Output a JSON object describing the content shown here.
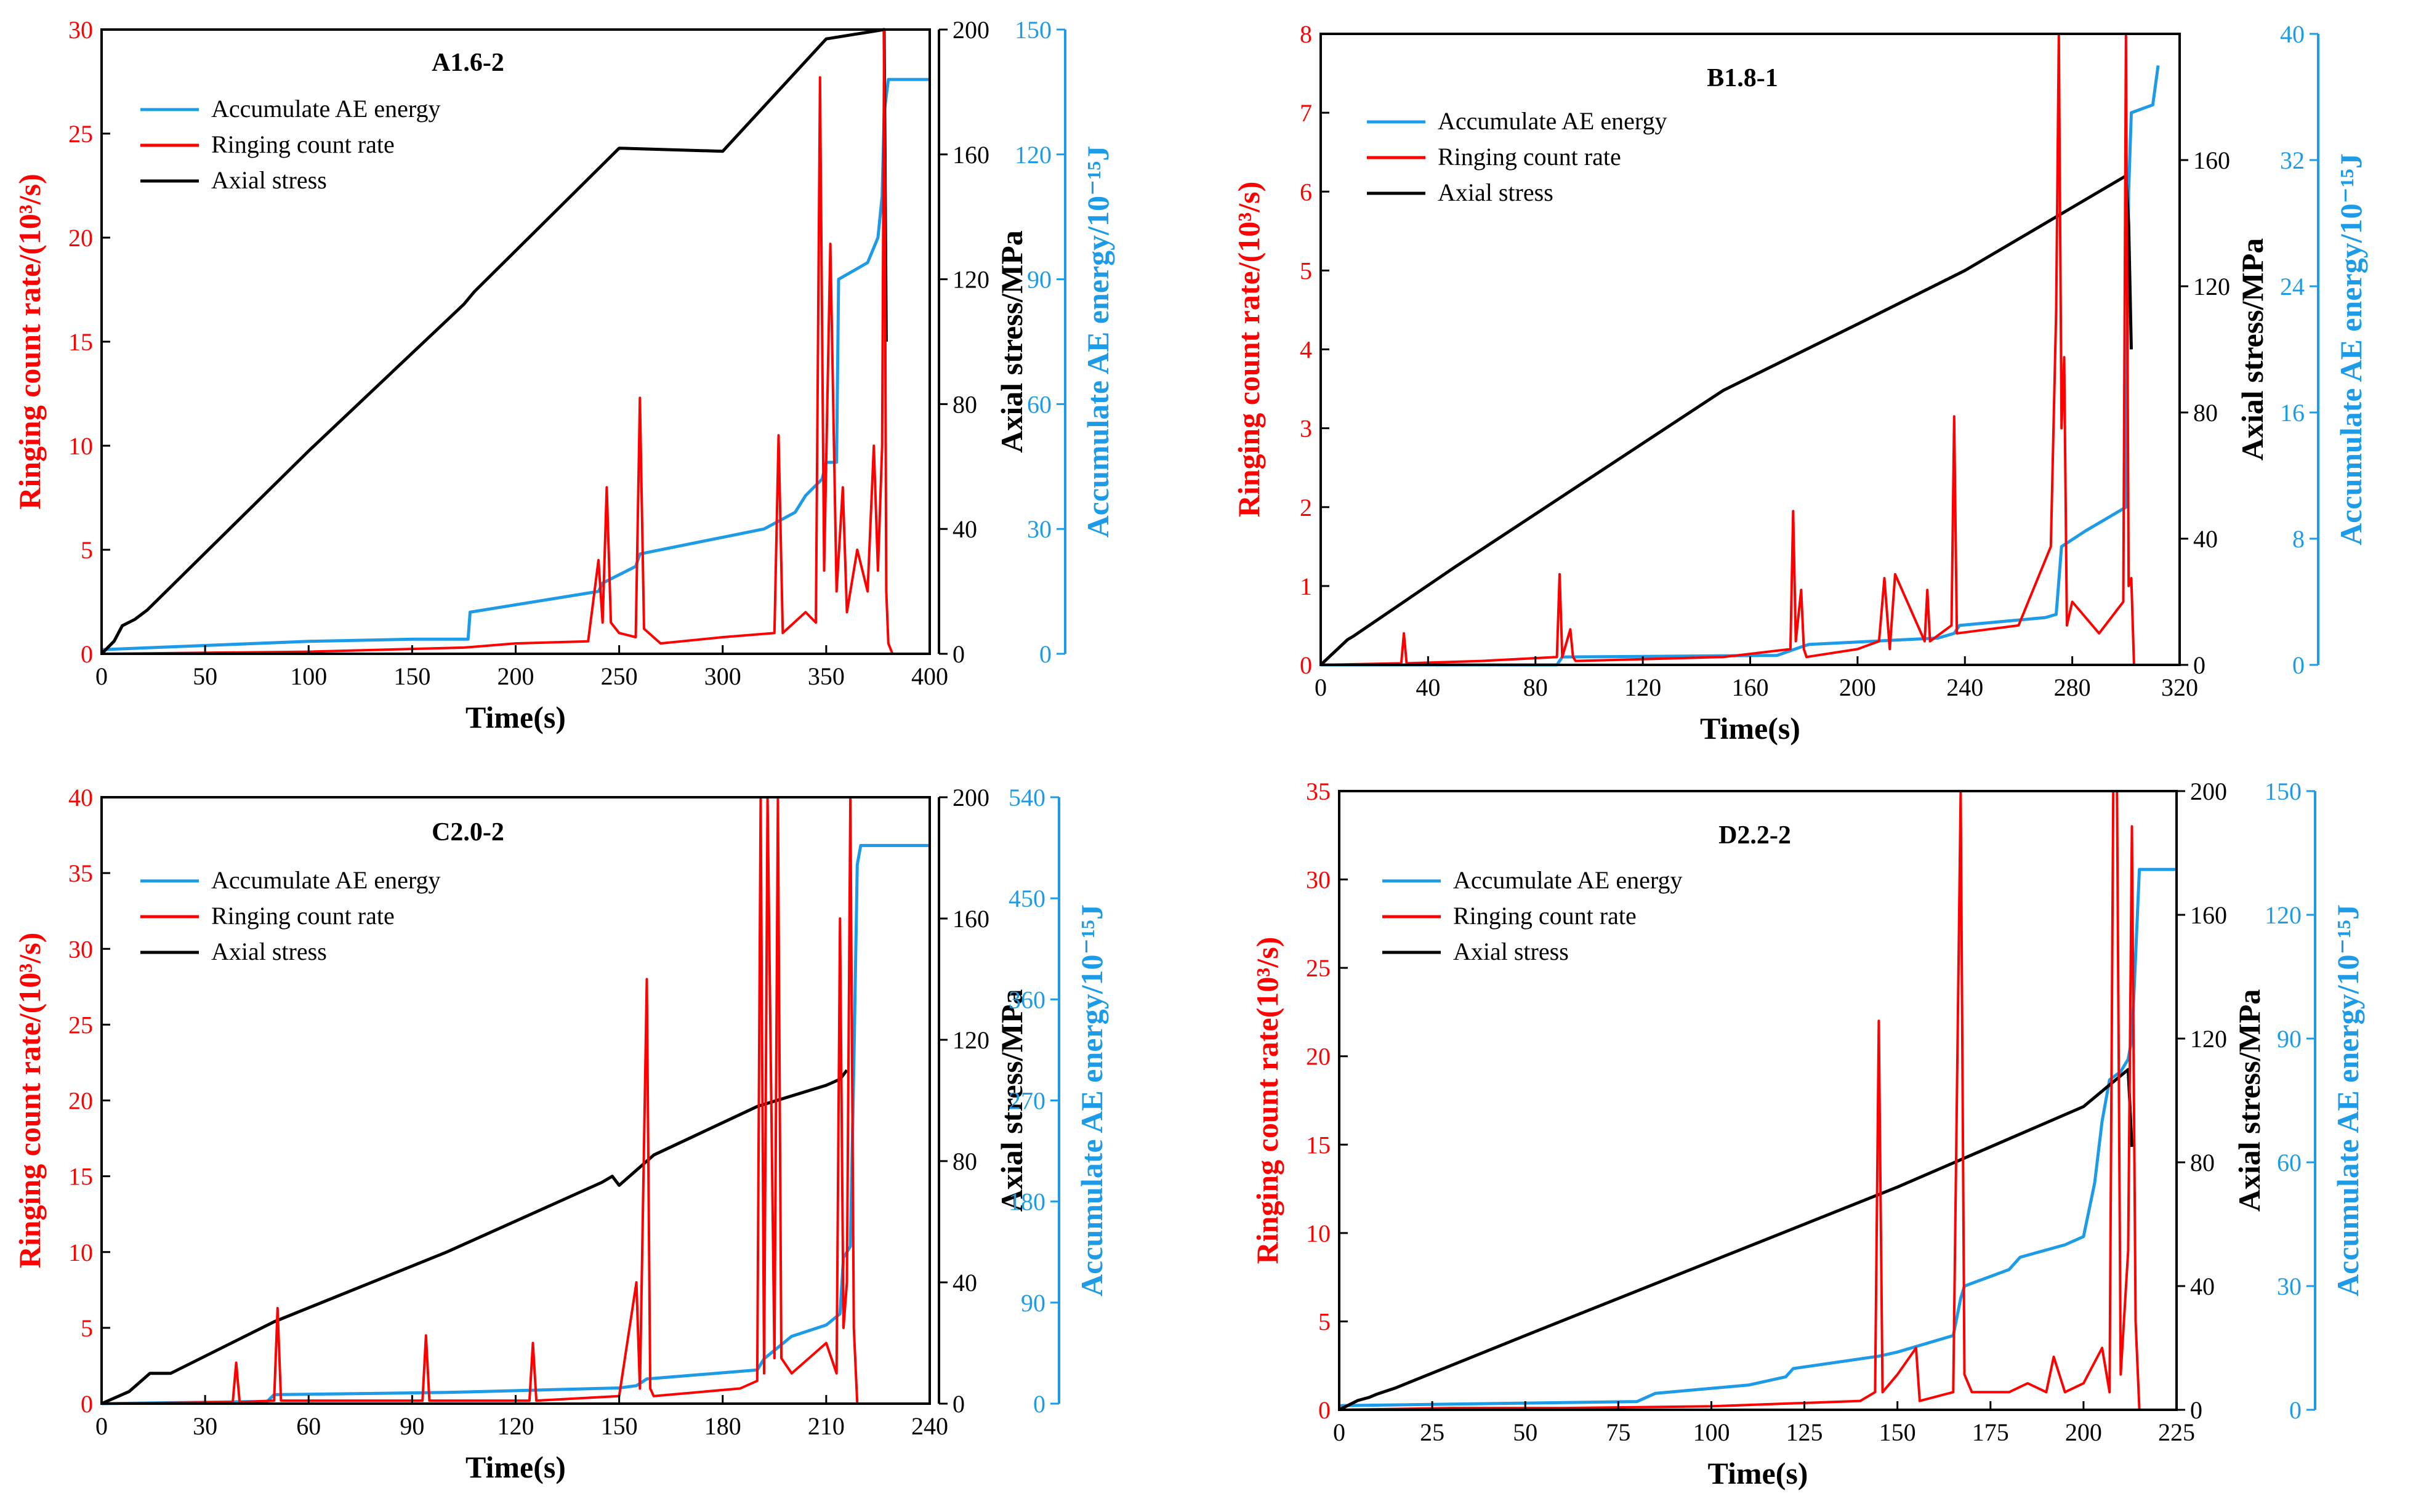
{
  "colors": {
    "ringing": "#ff0000",
    "energy": "#1e9be6",
    "stress": "#000000",
    "axis": "#000000"
  },
  "labels": {
    "xlabel": "Time(s)",
    "ylabel_left": "Ringing count rate/(10³/s)",
    "ylabel_left_alt": "Ringing count rate(10³/s)",
    "ylabel_stress": "Axial stress/MPa",
    "ylabel_energy": "Accumulate AE energy/10⁻¹⁵J"
  },
  "legend": {
    "energy": "Accumulate AE energy",
    "ringing": "Ringing count rate",
    "stress": "Axial stress"
  },
  "chart_data": [
    {
      "type": "line",
      "title": "A1.6-2",
      "xlim": [
        0,
        400
      ],
      "xticks": [
        0,
        50,
        100,
        150,
        200,
        250,
        300,
        350,
        400
      ],
      "ylim_left": [
        0,
        30
      ],
      "yticks_left": [
        0,
        5,
        10,
        15,
        20,
        25,
        30
      ],
      "ylim_stress": [
        0,
        200
      ],
      "yticks_stress": [
        0,
        40,
        80,
        120,
        160,
        200
      ],
      "ylim_energy": [
        0,
        150
      ],
      "yticks_energy": [
        0,
        30,
        60,
        90,
        120,
        150
      ],
      "ylabel_left_variant": "slash",
      "series": [
        {
          "name": "Axial stress",
          "axis": "stress",
          "x": [
            0,
            6,
            10,
            16,
            22,
            100,
            175,
            180,
            250,
            300,
            350,
            378,
            379
          ],
          "y": [
            0,
            4,
            9,
            11,
            14,
            65,
            112,
            116,
            162,
            161,
            197,
            210,
            100
          ]
        },
        {
          "name": "Accumulate AE energy",
          "axis": "energy",
          "x": [
            0,
            50,
            100,
            150,
            177,
            178,
            240,
            242,
            258,
            260,
            320,
            335,
            340,
            348,
            350,
            355,
            356,
            370,
            375,
            377,
            378,
            380,
            400
          ],
          "y": [
            1,
            2,
            3,
            3.5,
            3.5,
            10,
            15,
            17,
            21,
            24,
            30,
            34,
            38,
            42,
            46,
            46,
            90,
            94,
            100,
            110,
            130,
            138,
            138
          ]
        },
        {
          "name": "Ringing count rate",
          "axis": "left",
          "x": [
            0,
            50,
            100,
            175,
            200,
            235,
            240,
            242,
            244,
            246,
            250,
            258,
            260,
            262,
            270,
            300,
            325,
            327,
            329,
            340,
            345,
            347,
            349,
            352,
            355,
            358,
            360,
            365,
            370,
            373,
            375,
            377,
            378,
            379,
            380,
            382
          ],
          "y": [
            0,
            0.05,
            0.1,
            0.3,
            0.5,
            0.6,
            4.5,
            1.5,
            8.0,
            1.5,
            1.0,
            0.8,
            12.3,
            1.2,
            0.5,
            0.8,
            1.0,
            10.5,
            1.0,
            2.0,
            1.5,
            27.7,
            4.0,
            19.7,
            3.0,
            8.0,
            2.0,
            5.0,
            3.0,
            10.0,
            4.0,
            10.0,
            30.0,
            3.0,
            0.5,
            0
          ]
        }
      ]
    },
    {
      "type": "line",
      "title": "B1.8-1",
      "xlim": [
        0,
        320
      ],
      "xticks": [
        0,
        40,
        80,
        120,
        160,
        200,
        240,
        280,
        320
      ],
      "ylim_left": [
        0,
        8
      ],
      "yticks_left": [
        0,
        1,
        2,
        3,
        4,
        5,
        6,
        7,
        8
      ],
      "ylim_stress": [
        0,
        200
      ],
      "yticks_stress": [
        0,
        40,
        80,
        120,
        160
      ],
      "ylim_energy": [
        0,
        40
      ],
      "yticks_energy": [
        0,
        8,
        16,
        24,
        32,
        40
      ],
      "ylabel_left_variant": "slash",
      "series": [
        {
          "name": "Axial stress",
          "axis": "stress",
          "x": [
            0,
            10,
            12,
            50,
            100,
            150,
            200,
            240,
            280,
            300,
            301,
            302
          ],
          "y": [
            0,
            8,
            9,
            31,
            59,
            87,
            108,
            125,
            145,
            155,
            140,
            100
          ]
        },
        {
          "name": "Accumulate AE energy",
          "axis": "energy",
          "x": [
            0,
            88,
            90,
            170,
            180,
            182,
            230,
            236,
            238,
            270,
            274,
            276,
            285,
            295,
            300,
            301,
            302,
            310,
            312
          ],
          "y": [
            0,
            0,
            0.5,
            0.6,
            1.2,
            1.3,
            1.7,
            2.0,
            2.5,
            3.0,
            3.2,
            7.5,
            8.5,
            9.5,
            10.0,
            30.0,
            35.0,
            35.5,
            38.0
          ]
        },
        {
          "name": "Ringing count rate",
          "axis": "left",
          "x": [
            0,
            30,
            31,
            32,
            60,
            88,
            89,
            90,
            93,
            94,
            95,
            150,
            175,
            176,
            177,
            179,
            180,
            181,
            200,
            208,
            210,
            212,
            214,
            225,
            226,
            227,
            235,
            236,
            237,
            260,
            272,
            274,
            275,
            276,
            277,
            278,
            280,
            290,
            299,
            300,
            301,
            302,
            303
          ],
          "y": [
            0,
            0.02,
            0.4,
            0.02,
            0.05,
            0.1,
            1.15,
            0.1,
            0.45,
            0.1,
            0.05,
            0.1,
            0.2,
            1.95,
            0.3,
            0.95,
            0.2,
            0.1,
            0.2,
            0.3,
            1.1,
            0.2,
            1.15,
            0.3,
            0.95,
            0.3,
            0.5,
            3.15,
            0.4,
            0.5,
            1.5,
            4.5,
            8.0,
            3.0,
            3.9,
            0.5,
            0.8,
            0.4,
            0.8,
            8.0,
            1.0,
            1.1,
            0
          ]
        }
      ]
    },
    {
      "type": "line",
      "title": "C2.0-2",
      "xlim": [
        0,
        240
      ],
      "xticks": [
        0,
        30,
        60,
        90,
        120,
        150,
        180,
        210,
        240
      ],
      "ylim_left": [
        0,
        40
      ],
      "yticks_left": [
        0,
        5,
        10,
        15,
        20,
        25,
        30,
        35,
        40
      ],
      "ylim_stress": [
        0,
        200
      ],
      "yticks_stress": [
        0,
        40,
        80,
        120,
        160,
        200
      ],
      "ylim_energy": [
        0,
        540
      ],
      "yticks_energy": [
        0,
        90,
        180,
        270,
        360,
        450,
        540
      ],
      "ylabel_left_variant": "slash",
      "series": [
        {
          "name": "Axial stress",
          "axis": "stress",
          "x": [
            0,
            8,
            12,
            14,
            20,
            50,
            100,
            145,
            148,
            150,
            160,
            190,
            210,
            214,
            216
          ],
          "y": [
            0,
            4,
            8,
            10,
            10,
            27,
            50,
            73,
            75,
            72,
            82,
            98,
            105,
            107,
            110
          ]
        },
        {
          "name": "Accumulate AE energy",
          "axis": "energy",
          "x": [
            0,
            48,
            50,
            100,
            150,
            155,
            158,
            190,
            192,
            200,
            210,
            214,
            215,
            217,
            218,
            219,
            220,
            240
          ],
          "y": [
            0,
            2,
            8,
            10,
            14,
            16,
            22,
            30,
            40,
            60,
            70,
            80,
            130,
            140,
            300,
            480,
            497,
            497
          ]
        },
        {
          "name": "Ringing count rate",
          "axis": "left",
          "x": [
            0,
            38,
            39,
            40,
            50,
            51,
            52,
            93,
            94,
            95,
            124,
            125,
            126,
            150,
            155,
            156,
            158,
            159,
            160,
            185,
            190,
            191,
            192,
            193,
            195,
            196,
            197,
            200,
            205,
            210,
            213,
            214,
            215,
            216,
            217,
            218,
            219
          ],
          "y": [
            0,
            0.1,
            2.7,
            0.1,
            0.2,
            6.3,
            0.2,
            0.2,
            4.5,
            0.2,
            0.2,
            4.0,
            0.2,
            0.5,
            8.0,
            1.0,
            28.0,
            1.0,
            0.5,
            1.0,
            1.5,
            40.0,
            2.0,
            40.0,
            3.0,
            40.0,
            3.0,
            2.0,
            3.0,
            4.0,
            2.0,
            32.0,
            5.0,
            8.0,
            40.0,
            5.0,
            0
          ]
        }
      ]
    },
    {
      "type": "line",
      "title": "D2.2-2",
      "xlim": [
        0,
        225
      ],
      "xticks": [
        0,
        25,
        50,
        75,
        100,
        125,
        150,
        175,
        200,
        225
      ],
      "ylim_left": [
        0,
        35
      ],
      "yticks_left": [
        0,
        5,
        10,
        15,
        20,
        25,
        30,
        35
      ],
      "ylim_stress": [
        0,
        200
      ],
      "yticks_stress": [
        0,
        40,
        80,
        120,
        160,
        200
      ],
      "ylim_energy": [
        0,
        150
      ],
      "yticks_energy": [
        0,
        30,
        60,
        90,
        120,
        150
      ],
      "ylabel_left_variant": "plain",
      "series": [
        {
          "name": "Axial stress",
          "axis": "stress",
          "x": [
            0,
            5,
            8,
            10,
            15,
            50,
            100,
            150,
            200,
            210,
            212,
            213
          ],
          "y": [
            0,
            3,
            4,
            5,
            7,
            24,
            48,
            72,
            98,
            108,
            110,
            85
          ]
        },
        {
          "name": "Accumulate AE energy",
          "axis": "energy",
          "x": [
            0,
            80,
            85,
            110,
            120,
            122,
            145,
            150,
            165,
            167,
            168,
            180,
            183,
            195,
            200,
            203,
            205,
            207,
            210,
            212,
            213,
            214,
            215,
            225
          ],
          "y": [
            1,
            2,
            4,
            6,
            8,
            10,
            13,
            14,
            18,
            27,
            30,
            34,
            37,
            40,
            42,
            55,
            70,
            80,
            82,
            85,
            90,
            110,
            131,
            131
          ]
        },
        {
          "name": "Ringing count rate",
          "axis": "left",
          "x": [
            0,
            30,
            60,
            100,
            140,
            144,
            145,
            146,
            150,
            155,
            156,
            165,
            167,
            168,
            170,
            180,
            185,
            190,
            192,
            195,
            200,
            205,
            207,
            208,
            209,
            210,
            212,
            213,
            214,
            215
          ],
          "y": [
            0,
            0.1,
            0.1,
            0.2,
            0.5,
            1.0,
            22.0,
            1.0,
            2.0,
            3.5,
            0.5,
            1.0,
            35.0,
            2.0,
            1.0,
            1.0,
            1.5,
            1.0,
            3.0,
            1.0,
            1.5,
            3.5,
            1.0,
            35.0,
            35.0,
            2.0,
            9.0,
            33.0,
            5.0,
            0
          ]
        }
      ]
    }
  ]
}
